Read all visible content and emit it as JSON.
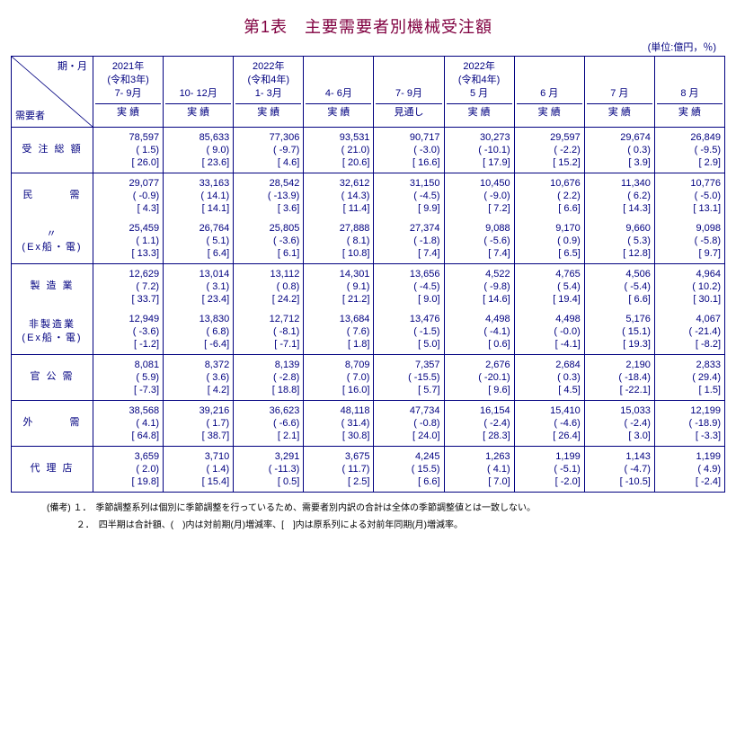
{
  "title": "第1表　主要需要者別機械受注額",
  "unit": "(単位:億円，％)",
  "corner": {
    "top": "期・月",
    "bottom": "需要者"
  },
  "colors": {
    "text": "#000080",
    "title": "#800040",
    "border": "#000080",
    "background": "#ffffff"
  },
  "columns": [
    {
      "line1": "2021年",
      "line2": "(令和3年)",
      "line3": "7- 9月",
      "sub": "実 績"
    },
    {
      "line1": "",
      "line2": "",
      "line3": "10- 12月",
      "sub": "実 績"
    },
    {
      "line1": "2022年",
      "line2": "(令和4年)",
      "line3": "1- 3月",
      "sub": "実 績"
    },
    {
      "line1": "",
      "line2": "",
      "line3": "4- 6月",
      "sub": "実 績"
    },
    {
      "line1": "",
      "line2": "",
      "line3": "7- 9月",
      "sub": "見通し"
    },
    {
      "line1": "2022年",
      "line2": "(令和4年)",
      "line3": "5 月",
      "sub": "実 績",
      "monthStart": true
    },
    {
      "line1": "",
      "line2": "",
      "line3": "6 月",
      "sub": "実 績"
    },
    {
      "line1": "",
      "line2": "",
      "line3": "7 月",
      "sub": "実 績"
    },
    {
      "line1": "",
      "line2": "",
      "line3": "8 月",
      "sub": "実 績"
    }
  ],
  "groups": [
    {
      "rows": [
        {
          "label": "受 注 総 額",
          "sub": "",
          "cells": [
            [
              "78,597",
              "( 1.5)",
              "[ 26.0]"
            ],
            [
              "85,633",
              "( 9.0)",
              "[ 23.6]"
            ],
            [
              "77,306",
              "( -9.7)",
              "[ 4.6]"
            ],
            [
              "93,531",
              "( 21.0)",
              "[ 20.6]"
            ],
            [
              "90,717",
              "( -3.0)",
              "[ 16.6]"
            ],
            [
              "30,273",
              "( -10.1)",
              "[ 17.9]"
            ],
            [
              "29,597",
              "( -2.2)",
              "[ 15.2]"
            ],
            [
              "29,674",
              "( 0.3)",
              "[ 3.9]"
            ],
            [
              "26,849",
              "( -9.5)",
              "[ 2.9]"
            ]
          ]
        }
      ]
    },
    {
      "rows": [
        {
          "label": "民　　　需",
          "sub": "",
          "cells": [
            [
              "29,077",
              "( -0.9)",
              "[ 4.3]"
            ],
            [
              "33,163",
              "( 14.1)",
              "[ 14.1]"
            ],
            [
              "28,542",
              "( -13.9)",
              "[ 3.6]"
            ],
            [
              "32,612",
              "( 14.3)",
              "[ 11.4]"
            ],
            [
              "31,150",
              "( -4.5)",
              "[ 9.9]"
            ],
            [
              "10,450",
              "( -9.0)",
              "[ 7.2]"
            ],
            [
              "10,676",
              "( 2.2)",
              "[ 6.6]"
            ],
            [
              "11,340",
              "( 6.2)",
              "[ 14.3]"
            ],
            [
              "10,776",
              "( -5.0)",
              "[ 13.1]"
            ]
          ]
        },
        {
          "label": "〃",
          "sub": "(Ex船・電)",
          "cells": [
            [
              "25,459",
              "( 1.1)",
              "[ 13.3]"
            ],
            [
              "26,764",
              "( 5.1)",
              "[ 6.4]"
            ],
            [
              "25,805",
              "( -3.6)",
              "[ 6.1]"
            ],
            [
              "27,888",
              "( 8.1)",
              "[ 10.8]"
            ],
            [
              "27,374",
              "( -1.8)",
              "[ 7.4]"
            ],
            [
              "9,088",
              "( -5.6)",
              "[ 7.4]"
            ],
            [
              "9,170",
              "( 0.9)",
              "[ 6.5]"
            ],
            [
              "9,660",
              "( 5.3)",
              "[ 12.8]"
            ],
            [
              "9,098",
              "( -5.8)",
              "[ 9.7]"
            ]
          ]
        }
      ]
    },
    {
      "rows": [
        {
          "label": "製 造 業",
          "sub": "",
          "cells": [
            [
              "12,629",
              "( 7.2)",
              "[ 33.7]"
            ],
            [
              "13,014",
              "( 3.1)",
              "[ 23.4]"
            ],
            [
              "13,112",
              "( 0.8)",
              "[ 24.2]"
            ],
            [
              "14,301",
              "( 9.1)",
              "[ 21.2]"
            ],
            [
              "13,656",
              "( -4.5)",
              "[ 9.0]"
            ],
            [
              "4,522",
              "( -9.8)",
              "[ 14.6]"
            ],
            [
              "4,765",
              "( 5.4)",
              "[ 19.4]"
            ],
            [
              "4,506",
              "( -5.4)",
              "[ 6.6]"
            ],
            [
              "4,964",
              "( 10.2)",
              "[ 30.1]"
            ]
          ]
        },
        {
          "label": "非製造業",
          "sub": "(Ex船・電)",
          "cells": [
            [
              "12,949",
              "( -3.6)",
              "[ -1.2]"
            ],
            [
              "13,830",
              "( 6.8)",
              "[ -6.4]"
            ],
            [
              "12,712",
              "( -8.1)",
              "[ -7.1]"
            ],
            [
              "13,684",
              "( 7.6)",
              "[ 1.8]"
            ],
            [
              "13,476",
              "( -1.5)",
              "[ 5.0]"
            ],
            [
              "4,498",
              "( -4.1)",
              "[ 0.6]"
            ],
            [
              "4,498",
              "( -0.0)",
              "[ -4.1]"
            ],
            [
              "5,176",
              "( 15.1)",
              "[ 19.3]"
            ],
            [
              "4,067",
              "( -21.4)",
              "[ -8.2]"
            ]
          ]
        }
      ]
    },
    {
      "rows": [
        {
          "label": "官 公 需",
          "sub": "",
          "cells": [
            [
              "8,081",
              "( 5.9)",
              "[ -7.3]"
            ],
            [
              "8,372",
              "( 3.6)",
              "[ 4.2]"
            ],
            [
              "8,139",
              "( -2.8)",
              "[ 18.8]"
            ],
            [
              "8,709",
              "( 7.0)",
              "[ 16.0]"
            ],
            [
              "7,357",
              "( -15.5)",
              "[ 5.7]"
            ],
            [
              "2,676",
              "( -20.1)",
              "[ 9.6]"
            ],
            [
              "2,684",
              "( 0.3)",
              "[ 4.5]"
            ],
            [
              "2,190",
              "( -18.4)",
              "[ -22.1]"
            ],
            [
              "2,833",
              "( 29.4)",
              "[ 1.5]"
            ]
          ]
        }
      ]
    },
    {
      "rows": [
        {
          "label": "外　　　需",
          "sub": "",
          "cells": [
            [
              "38,568",
              "( 4.1)",
              "[ 64.8]"
            ],
            [
              "39,216",
              "( 1.7)",
              "[ 38.7]"
            ],
            [
              "36,623",
              "( -6.6)",
              "[ 2.1]"
            ],
            [
              "48,118",
              "( 31.4)",
              "[ 30.8]"
            ],
            [
              "47,734",
              "( -0.8)",
              "[ 24.0]"
            ],
            [
              "16,154",
              "( -2.4)",
              "[ 28.3]"
            ],
            [
              "15,410",
              "( -4.6)",
              "[ 26.4]"
            ],
            [
              "15,033",
              "( -2.4)",
              "[ 3.0]"
            ],
            [
              "12,199",
              "( -18.9)",
              "[ -3.3]"
            ]
          ]
        }
      ]
    },
    {
      "rows": [
        {
          "label": "代 理 店",
          "sub": "",
          "cells": [
            [
              "3,659",
              "( 2.0)",
              "[ 19.8]"
            ],
            [
              "3,710",
              "( 1.4)",
              "[ 15.4]"
            ],
            [
              "3,291",
              "( -11.3)",
              "[ 0.5]"
            ],
            [
              "3,675",
              "( 11.7)",
              "[ 2.5]"
            ],
            [
              "4,245",
              "( 15.5)",
              "[ 6.6]"
            ],
            [
              "1,263",
              "( 4.1)",
              "[ 7.0]"
            ],
            [
              "1,199",
              "( -5.1)",
              "[ -2.0]"
            ],
            [
              "1,143",
              "( -4.7)",
              "[ -10.5]"
            ],
            [
              "1,199",
              "( 4.9)",
              "[ -2.4]"
            ]
          ]
        }
      ]
    }
  ],
  "notes": [
    "(備考) １．　季節調整系列は個別に季節調整を行っているため、需要者別内訳の合計は全体の季節調整値とは一致しない。",
    "　　　 ２．　四半期は合計額、(　)内は対前期(月)増減率、[　]内は原系列による対前年同期(月)増減率。"
  ]
}
